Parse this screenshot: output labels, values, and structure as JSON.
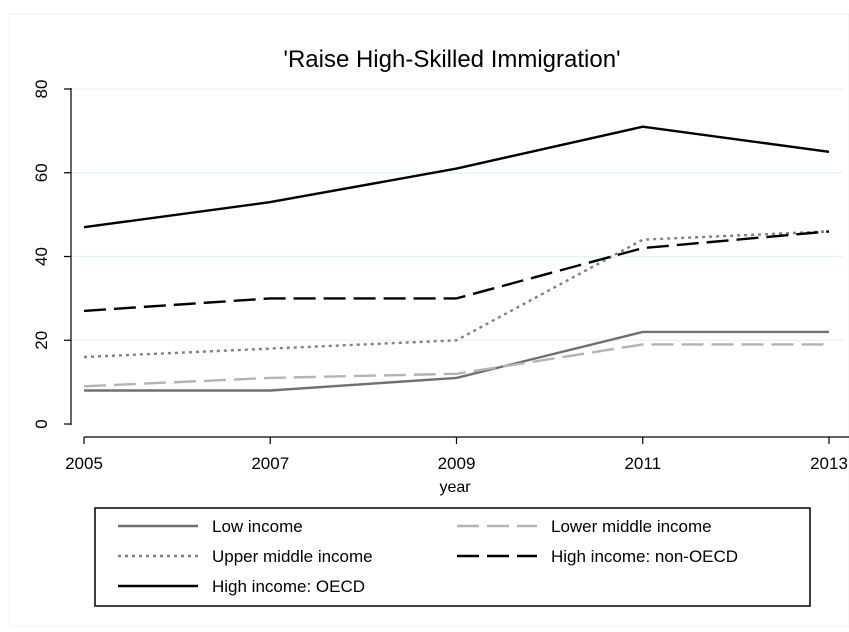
{
  "chart_data": {
    "type": "line",
    "title": "'Raise High-Skilled Immigration'",
    "xlabel": "year",
    "ylabel": "",
    "x": [
      2005,
      2007,
      2009,
      2011,
      2013
    ],
    "x_ticks": [
      "2005",
      "2007",
      "2009",
      "2011",
      "2013"
    ],
    "y_ticks": [
      "0",
      "20",
      "40",
      "60",
      "80"
    ],
    "xlim": [
      2005,
      2013
    ],
    "ylim": [
      0,
      80
    ],
    "grid": "horizontal",
    "legend_position": "bottom",
    "series": [
      {
        "name": "Low income",
        "values": [
          8,
          8,
          11,
          22,
          22
        ],
        "color": "#707070",
        "dash": "solid"
      },
      {
        "name": "Lower middle income",
        "values": [
          9,
          11,
          12,
          19,
          19
        ],
        "color": "#b4b4b4",
        "dash": "long-dash"
      },
      {
        "name": "Upper middle income",
        "values": [
          16,
          18,
          20,
          44,
          46
        ],
        "color": "#808080",
        "dash": "dot"
      },
      {
        "name": "High income: non-OECD",
        "values": [
          27,
          30,
          30,
          42,
          46
        ],
        "color": "#000000",
        "dash": "long-dash"
      },
      {
        "name": "High income: OECD",
        "values": [
          47,
          53,
          61,
          71,
          65
        ],
        "color": "#000000",
        "dash": "solid"
      }
    ]
  }
}
